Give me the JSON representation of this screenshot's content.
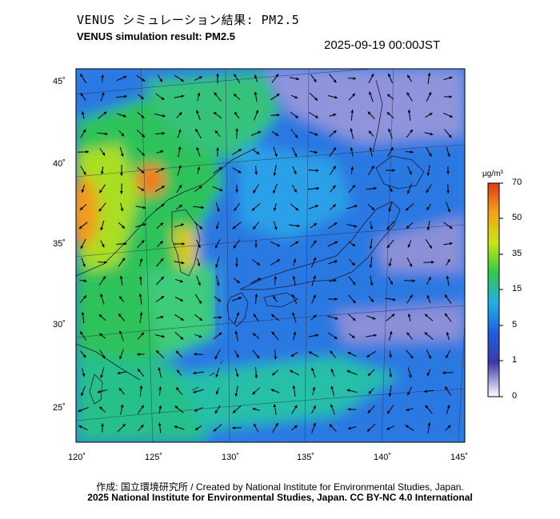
{
  "header": {
    "title_jp": "VENUS シミュレーション結果: PM2.5",
    "title_en": "VENUS simulation result: PM2.5",
    "datetime": "2025-09-19 00:00JST"
  },
  "axes": {
    "lat_labels": [
      "45˚",
      "40˚",
      "35˚",
      "30˚",
      "25˚"
    ],
    "lon_labels": [
      "120˚",
      "125˚",
      "130˚",
      "135˚",
      "140˚",
      "145˚"
    ]
  },
  "colorbar": {
    "unit": "µg/m³",
    "ticks": [
      "70",
      "50",
      "35",
      "15",
      "5",
      "1",
      "0"
    ],
    "colors": [
      "#ffffff",
      "#3a3aa8",
      "#1e5fe0",
      "#22b0e6",
      "#32c84a",
      "#c8e616",
      "#f2a41a",
      "#e23a14"
    ]
  },
  "footer": {
    "credit_line1": "作成: 国立環境研究所 / Created by National Institute for Environmental Studies, Japan.",
    "credit_line2": "2025 National Institute for Environmental Studies, Japan. CC BY-NC 4.0 International"
  }
}
